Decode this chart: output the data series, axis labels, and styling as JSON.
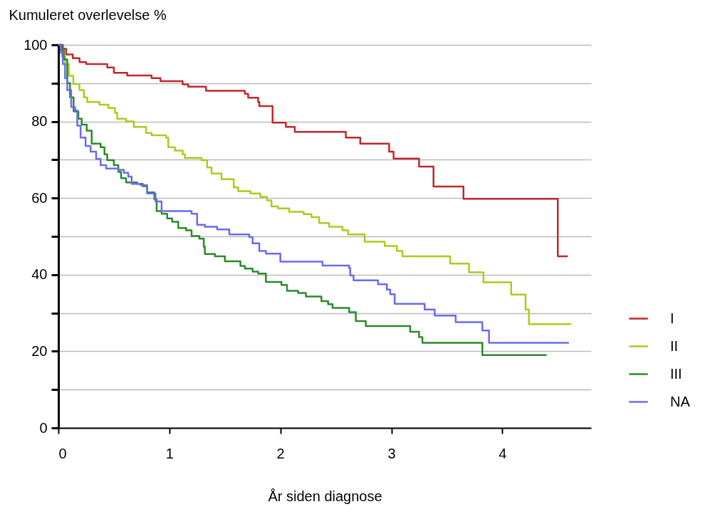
{
  "chart_data": {
    "type": "step",
    "xlabel": "År siden diagnose",
    "ylabel": "Kumuleret overlevelse %",
    "xlim": [
      0,
      4.8
    ],
    "xticks": [
      0,
      1,
      2,
      3,
      4
    ],
    "ylim": [
      0,
      100
    ],
    "yticks": [
      0,
      {
        "value": 10,
        "label": null
      },
      20,
      {
        "value": 30,
        "label": null
      },
      40,
      {
        "value": 50,
        "label": null
      },
      60,
      {
        "value": 70,
        "label": null
      },
      80,
      {
        "value": 90,
        "label": null
      },
      100
    ],
    "grid": "y",
    "legend": "right",
    "line_style": "solid",
    "marker": "none",
    "series": [
      {
        "name": "I",
        "color": "#c0272d",
        "x": [
          0,
          0.04,
          0.07,
          0.13,
          0.19,
          0.25,
          0.44,
          0.5,
          0.62,
          0.84,
          0.92,
          1.12,
          1.17,
          1.33,
          1.68,
          1.71,
          1.8,
          1.81,
          1.93,
          2.05,
          2.13,
          2.59,
          2.72,
          2.98,
          3.02,
          3.25,
          3.38,
          3.65,
          4.5,
          4.59
        ],
        "values": [
          100,
          99,
          97.5,
          96.5,
          95.5,
          95,
          94.1,
          92.7,
          92,
          91.3,
          90.5,
          89.7,
          89.1,
          88,
          87.2,
          86.2,
          85.1,
          84,
          79.7,
          78.6,
          77.3,
          75.8,
          74.2,
          72.1,
          70.3,
          68.2,
          63,
          59.8,
          44.8,
          44.8
        ]
      },
      {
        "name": "II",
        "color": "#a8cd1b",
        "x": [
          0,
          0.03,
          0.06,
          0.094,
          0.135,
          0.19,
          0.23,
          0.26,
          0.37,
          0.45,
          0.51,
          0.53,
          0.61,
          0.68,
          0.79,
          0.84,
          0.97,
          0.99,
          1.05,
          1.12,
          1.14,
          1.29,
          1.34,
          1.38,
          1.47,
          1.58,
          1.62,
          1.73,
          1.82,
          1.88,
          1.92,
          1.98,
          2.08,
          2.21,
          2.28,
          2.35,
          2.44,
          2.56,
          2.61,
          2.76,
          2.94,
          3.05,
          3.1,
          3.53,
          3.7,
          3.83,
          4.08,
          4.21,
          4.24,
          4.62
        ],
        "values": [
          100,
          97,
          95,
          91.9,
          89.8,
          88.2,
          86.3,
          85.1,
          84.4,
          83.5,
          82.3,
          80.7,
          80,
          78.6,
          77,
          76.4,
          75.8,
          73.3,
          72.4,
          71.4,
          70.5,
          69.9,
          68,
          66.4,
          64.9,
          62.8,
          61.8,
          61.2,
          60.3,
          59.4,
          57.8,
          57.3,
          56.4,
          55.8,
          55,
          53.5,
          52.5,
          51.6,
          50.5,
          48.6,
          47.5,
          46.2,
          44.8,
          42.9,
          40.6,
          38,
          34.8,
          30.9,
          27.1,
          27.1
        ]
      },
      {
        "name": "III",
        "color": "#2a8a2a",
        "x": [
          0,
          0.03,
          0.05,
          0.08,
          0.105,
          0.137,
          0.18,
          0.21,
          0.255,
          0.3,
          0.38,
          0.415,
          0.44,
          0.5,
          0.54,
          0.565,
          0.61,
          0.71,
          0.76,
          0.8,
          0.865,
          0.885,
          0.93,
          0.98,
          1.025,
          1.08,
          1.15,
          1.2,
          1.27,
          1.31,
          1.32,
          1.41,
          1.5,
          1.64,
          1.68,
          1.75,
          1.8,
          1.87,
          2.01,
          2.06,
          2.16,
          2.23,
          2.37,
          2.43,
          2.47,
          2.62,
          2.68,
          2.77,
          3.17,
          3.25,
          3.28,
          3.82,
          4.4
        ],
        "values": [
          100,
          98.5,
          96.2,
          90,
          86.3,
          82.6,
          80.7,
          79.2,
          77.6,
          74.2,
          73.3,
          71.4,
          69.9,
          68.6,
          66.8,
          65.2,
          64.1,
          63.7,
          63.1,
          61.5,
          59.7,
          56.6,
          55.9,
          54.7,
          53.8,
          52.2,
          51.6,
          50.1,
          49.4,
          47.3,
          45.4,
          44.8,
          43.5,
          42.3,
          41.6,
          40.8,
          40.3,
          38.1,
          37.3,
          35.8,
          35.2,
          34.3,
          33.1,
          32.3,
          31.3,
          30.2,
          27.9,
          26.6,
          25.1,
          23.7,
          22.2,
          19,
          19
        ]
      },
      {
        "name": "NA",
        "color": "#6b6bef",
        "x": [
          0,
          0.02,
          0.04,
          0.06,
          0.08,
          0.115,
          0.15,
          0.17,
          0.2,
          0.245,
          0.29,
          0.34,
          0.38,
          0.43,
          0.54,
          0.59,
          0.63,
          0.66,
          0.74,
          0.8,
          0.875,
          0.93,
          1.13,
          1.2,
          1.25,
          1.32,
          1.43,
          1.54,
          1.72,
          1.75,
          1.81,
          1.87,
          2,
          2.38,
          2.62,
          2.63,
          2.66,
          2.88,
          2.96,
          2.99,
          3.03,
          3.3,
          3.39,
          3.58,
          3.82,
          3.88,
          4.6
        ],
        "values": [
          100,
          98,
          95,
          91.3,
          88.2,
          83.8,
          82.9,
          78.9,
          75.8,
          73.6,
          72.1,
          70.2,
          68.6,
          67.7,
          67.4,
          66.6,
          65.6,
          63.7,
          63.4,
          61.2,
          59.1,
          56.6,
          56.6,
          55.9,
          53,
          52.5,
          51.8,
          50.5,
          49.8,
          48.2,
          46.2,
          45.5,
          43.4,
          42.4,
          41.7,
          39.8,
          38.5,
          37.5,
          36.1,
          34.9,
          32.4,
          30.9,
          29.3,
          27.6,
          25.4,
          22.2,
          22.2
        ]
      }
    ]
  }
}
